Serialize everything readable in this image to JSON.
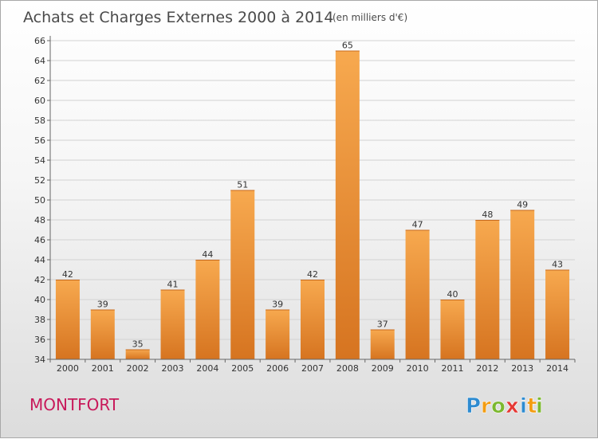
{
  "header": {
    "title": "Achats et Charges Externes 2000 à 2014",
    "subtitle": "(en milliers d'€)"
  },
  "footer": {
    "place": "MONTFORT",
    "brand": "Proxiti",
    "brand_letters": [
      {
        "ch": "P",
        "color": "#2e8bd0"
      },
      {
        "ch": "r",
        "color": "#f39c12"
      },
      {
        "ch": "o",
        "color": "#7cb82f"
      },
      {
        "ch": "x",
        "color": "#e53935"
      },
      {
        "ch": "i",
        "color": "#2e8bd0"
      },
      {
        "ch": "t",
        "color": "#f39c12"
      },
      {
        "ch": "i",
        "color": "#7cb82f"
      }
    ]
  },
  "colors": {
    "bar_top": "#f7a94f",
    "bar_bottom": "#d67420",
    "grid": "#d2d2d2",
    "axis": "#666666"
  },
  "chart_data": {
    "type": "bar",
    "title": "Achats et Charges Externes 2000 à 2014",
    "xlabel": "",
    "ylabel": "",
    "ylim": [
      34,
      66
    ],
    "ytick_step": 2,
    "grid": true,
    "categories": [
      "2000",
      "2001",
      "2002",
      "2003",
      "2004",
      "2005",
      "2006",
      "2007",
      "2008",
      "2009",
      "2010",
      "2011",
      "2012",
      "2013",
      "2014"
    ],
    "values": [
      42,
      39,
      35,
      41,
      44,
      51,
      39,
      42,
      65,
      37,
      47,
      40,
      48,
      49,
      43
    ]
  }
}
